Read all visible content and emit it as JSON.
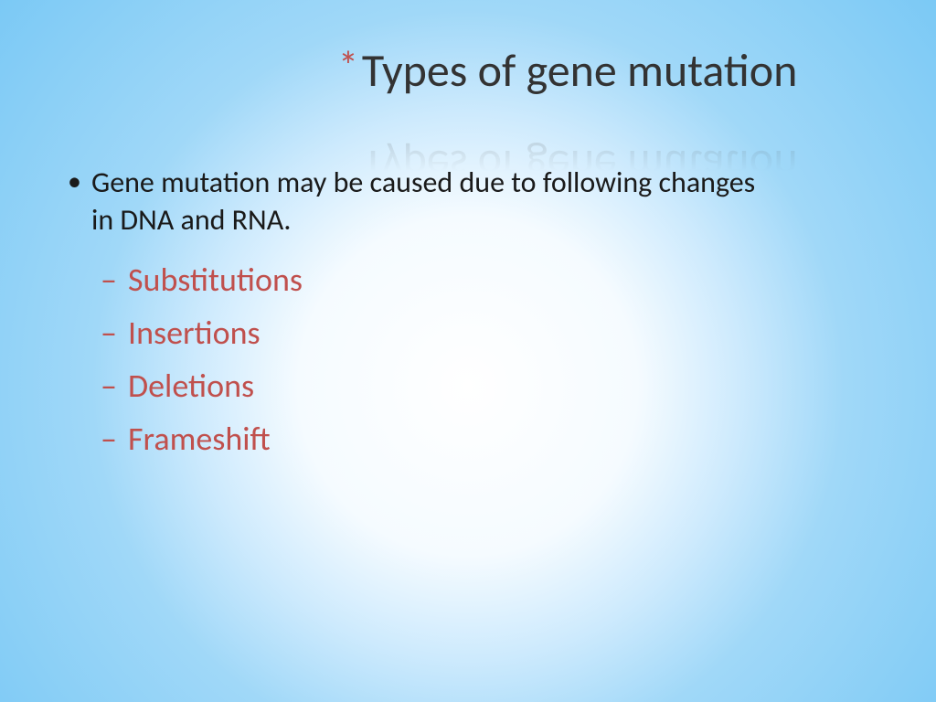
{
  "title": {
    "asterisk": "*",
    "text": "Types of gene mutation"
  },
  "body": {
    "intro": "Gene mutation may be caused due to following changes in DNA and RNA.",
    "items": [
      "Substitutions",
      "Insertions",
      "Deletions",
      "Frameshift"
    ]
  },
  "colors": {
    "accent": "#c0504d",
    "body_text": "#1a1a1a",
    "bg_center": "#ffffff",
    "bg_edge": "#7bc9f5"
  },
  "typography": {
    "title_fontsize": 50,
    "body_l1_fontsize": 32,
    "body_l2_fontsize": 36,
    "font_family": "Calibri"
  }
}
